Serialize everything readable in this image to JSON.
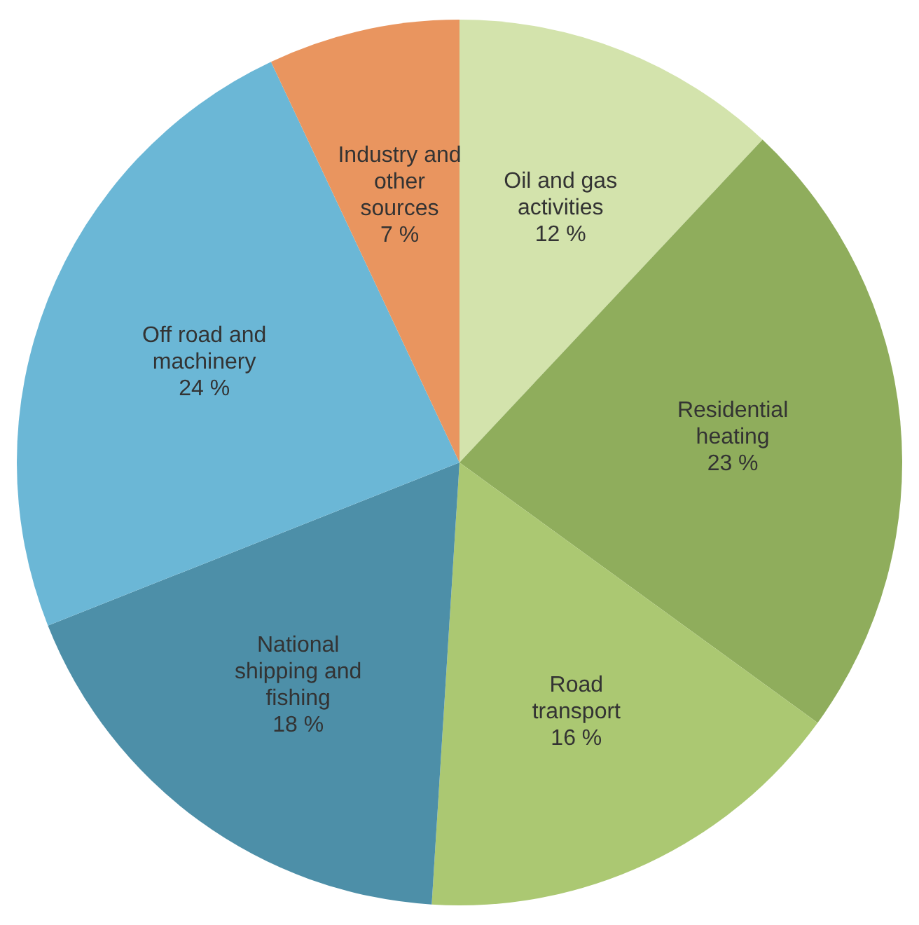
{
  "chart_data": {
    "type": "pie",
    "categories": [
      "Oil and gas activities",
      "Residential heating",
      "Road transport",
      "National shipping and fishing",
      "Off road and machinery",
      "Industry and other sources"
    ],
    "values": [
      12,
      23,
      16,
      18,
      24,
      7
    ],
    "colors": [
      "#d3e3ac",
      "#8fad5c",
      "#abc872",
      "#4d8fa8",
      "#6bb7d6",
      "#e9955f"
    ],
    "value_labels": [
      "12 %",
      "23 %",
      "16 %",
      "18 %",
      "24 %",
      "7 %"
    ],
    "legend": false
  }
}
